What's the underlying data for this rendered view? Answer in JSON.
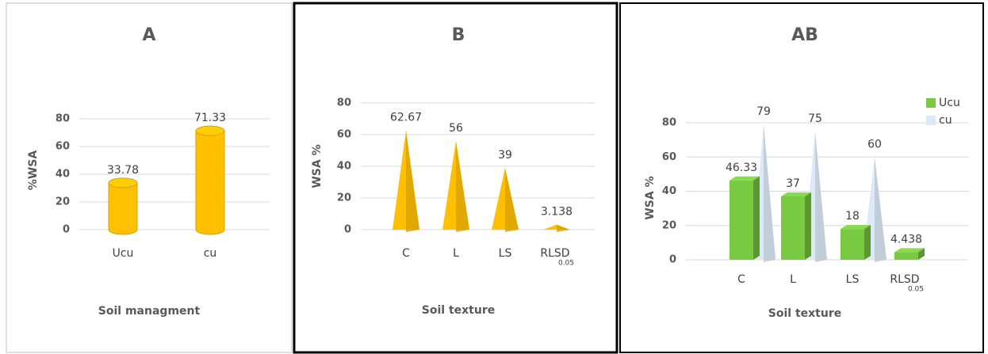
{
  "chart_data": [
    {
      "type": "bar",
      "title": "A",
      "shape": "cylinder",
      "categories": [
        "Ucu",
        "cu"
      ],
      "values": [
        33.78,
        71.33
      ],
      "color": "#ffc000",
      "ylabel": "%WSA",
      "xlabel": "Soil managment",
      "ylim": [
        0,
        80
      ],
      "yticks": [
        0,
        20,
        40,
        60,
        80
      ],
      "grid": true
    },
    {
      "type": "bar",
      "title": "B",
      "shape": "cone",
      "categories": [
        "C",
        "L",
        "LS",
        "RLSD"
      ],
      "category_subscripts": [
        null,
        null,
        null,
        "0.05"
      ],
      "values": [
        62.67,
        56,
        39,
        3.138
      ],
      "color": "#ffc000",
      "ylabel": "WSA %",
      "xlabel": "Soil texture",
      "ylim": [
        0,
        80
      ],
      "yticks": [
        0,
        20,
        40,
        60,
        80
      ],
      "grid": true
    },
    {
      "type": "bar",
      "title": "AB",
      "categories": [
        "C",
        "L",
        "LS",
        "RLSD"
      ],
      "category_subscripts": [
        null,
        null,
        null,
        "0.05"
      ],
      "series": [
        {
          "name": "Ucu",
          "color": "#7ac943",
          "shape": "box",
          "values": [
            46.33,
            37,
            18,
            4.438
          ]
        },
        {
          "name": "cu",
          "color": "#dce9f7",
          "shape": "cone",
          "values": [
            79,
            75,
            60,
            null
          ]
        }
      ],
      "ylabel": "WSA %",
      "xlabel": "Soil texture",
      "ylim": [
        0,
        80
      ],
      "yticks": [
        0,
        20,
        40,
        60,
        80
      ],
      "grid": true,
      "legend": "upper right"
    }
  ]
}
